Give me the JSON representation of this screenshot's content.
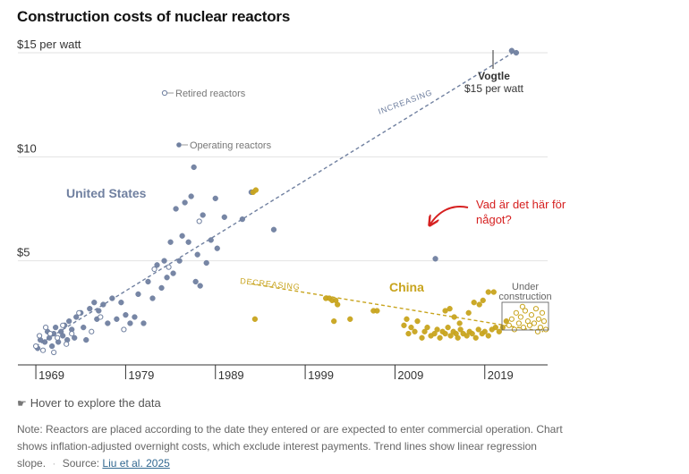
{
  "title": "Construction costs of nuclear reactors",
  "colors": {
    "us": "#7080a0",
    "china": "#c8a41e",
    "annotation_red": "#d62020",
    "grid": "#e2e2e2",
    "axis": "#333333"
  },
  "hover_hint": "Hover to explore the data",
  "note": {
    "text": "Note: Reactors are placed according to the date they entered or are expected to enter commercial operation. Chart shows inflation-adjusted overnight costs, which exclude interest payments. Trend lines show linear regression slope.",
    "source_label": "Source:",
    "source_link": "Liu et al. 2025"
  },
  "chart_data": {
    "type": "scatter",
    "title": "Construction costs of nuclear reactors",
    "xlim": [
      1967,
      2026
    ],
    "ylim": [
      0,
      15.3
    ],
    "x_ticks": [
      1969,
      1979,
      1989,
      1999,
      2009,
      2019
    ],
    "x_tick_labels": [
      "1969",
      "1979",
      "1989",
      "1999",
      "2009",
      "2019"
    ],
    "y_ticks": [
      5,
      10,
      15
    ],
    "y_tick_labels": [
      "$5",
      "$10",
      "$15 per watt"
    ],
    "grid": true,
    "labels": {
      "united_states": "United States",
      "china": "China",
      "retired_legend": "Retired reactors",
      "operating_legend": "Operating reactors",
      "vogtle_name": "Vogtle",
      "vogtle_value": "$15 per watt",
      "increasing": "INCREASING",
      "decreasing": "DECREASING",
      "under_construction": "Under construction",
      "handwritten_note": "Vad är det här för något?"
    },
    "trend_lines": {
      "us_increasing": {
        "x": [
          1969,
          2022.5
        ],
        "y": [
          0.9,
          15.1
        ]
      },
      "china_decreasing": {
        "x": [
          1993,
          2025.5
        ],
        "y": [
          3.9,
          1.6
        ]
      }
    },
    "series": [
      {
        "name": "United States",
        "status": "operating",
        "points": [
          [
            1969.2,
            0.8
          ],
          [
            1969.5,
            1.2
          ],
          [
            1970,
            1.1
          ],
          [
            1970.3,
            1.6
          ],
          [
            1970.5,
            1.3
          ],
          [
            1970.8,
            0.9
          ],
          [
            1971,
            1.5
          ],
          [
            1971.2,
            1.8
          ],
          [
            1971.5,
            1.1
          ],
          [
            1971.8,
            1.6
          ],
          [
            1972,
            1.4
          ],
          [
            1972.2,
            1.9
          ],
          [
            1972.5,
            1.2
          ],
          [
            1972.7,
            2.1
          ],
          [
            1973,
            1.7
          ],
          [
            1973.3,
            1.3
          ],
          [
            1973.5,
            2.3
          ],
          [
            1974,
            2.5
          ],
          [
            1974.3,
            1.8
          ],
          [
            1974.6,
            1.2
          ],
          [
            1975,
            2.7
          ],
          [
            1975.5,
            3.0
          ],
          [
            1975.8,
            2.2
          ],
          [
            1976,
            2.6
          ],
          [
            1976.5,
            2.9
          ],
          [
            1977,
            2.0
          ],
          [
            1977.5,
            3.2
          ],
          [
            1978,
            2.2
          ],
          [
            1978.5,
            3.0
          ],
          [
            1979,
            2.4
          ],
          [
            1979.5,
            2.0
          ],
          [
            1980,
            2.3
          ],
          [
            1980.4,
            3.4
          ],
          [
            1981,
            2.0
          ],
          [
            1981.5,
            4.0
          ],
          [
            1982,
            3.2
          ],
          [
            1982.5,
            4.8
          ],
          [
            1983,
            3.7
          ],
          [
            1983.3,
            5.0
          ],
          [
            1983.6,
            4.2
          ],
          [
            1984,
            5.9
          ],
          [
            1984.3,
            4.4
          ],
          [
            1984.6,
            7.5
          ],
          [
            1985,
            5.0
          ],
          [
            1985.3,
            6.2
          ],
          [
            1985.6,
            7.8
          ],
          [
            1986,
            5.9
          ],
          [
            1986.3,
            8.1
          ],
          [
            1986.6,
            9.5
          ],
          [
            1986.8,
            4.0
          ],
          [
            1987,
            5.3
          ],
          [
            1987.3,
            3.8
          ],
          [
            1987.6,
            7.2
          ],
          [
            1988,
            4.9
          ],
          [
            1988.5,
            6.0
          ],
          [
            1989,
            8.0
          ],
          [
            1989.2,
            5.6
          ],
          [
            1990,
            7.1
          ],
          [
            1992,
            7.0
          ],
          [
            1993,
            8.3
          ],
          [
            1995.5,
            6.5
          ],
          [
            2013.5,
            5.1
          ],
          [
            2022,
            15.1
          ],
          [
            2022.5,
            15.0
          ]
        ]
      },
      {
        "name": "United States",
        "status": "retired",
        "points": [
          [
            1969,
            0.9
          ],
          [
            1969.4,
            1.4
          ],
          [
            1969.8,
            0.7
          ],
          [
            1970.1,
            1.8
          ],
          [
            1970.6,
            1.5
          ],
          [
            1971,
            0.6
          ],
          [
            1971.4,
            1.3
          ],
          [
            1972,
            1.9
          ],
          [
            1972.4,
            1.0
          ],
          [
            1973,
            1.5
          ],
          [
            1973.8,
            2.5
          ],
          [
            1975.2,
            1.6
          ],
          [
            1976.2,
            2.3
          ],
          [
            1978.8,
            1.7
          ],
          [
            1982.2,
            4.6
          ],
          [
            1983.8,
            4.7
          ],
          [
            1987.2,
            6.9
          ]
        ]
      },
      {
        "name": "China",
        "status": "operating",
        "points": [
          [
            1993.2,
            8.3
          ],
          [
            1993.5,
            8.4
          ],
          [
            1993.4,
            2.2
          ],
          [
            2001.3,
            3.2
          ],
          [
            2001.7,
            3.2
          ],
          [
            2002,
            3.1
          ],
          [
            2002.4,
            3.1
          ],
          [
            2002.6,
            2.9
          ],
          [
            2002.2,
            2.1
          ],
          [
            2004,
            2.2
          ],
          [
            2006.6,
            2.6
          ],
          [
            2007,
            2.6
          ],
          [
            2010,
            1.9
          ],
          [
            2010.3,
            2.2
          ],
          [
            2010.5,
            1.5
          ],
          [
            2010.8,
            1.8
          ],
          [
            2011.2,
            1.6
          ],
          [
            2011.5,
            2.1
          ],
          [
            2012,
            1.3
          ],
          [
            2012.3,
            1.6
          ],
          [
            2012.6,
            1.8
          ],
          [
            2013,
            1.4
          ],
          [
            2013.4,
            1.5
          ],
          [
            2013.7,
            1.7
          ],
          [
            2014,
            1.3
          ],
          [
            2014.3,
            1.6
          ],
          [
            2014.6,
            1.5
          ],
          [
            2014.9,
            1.8
          ],
          [
            2015.2,
            1.4
          ],
          [
            2015.5,
            1.6
          ],
          [
            2015.8,
            1.5
          ],
          [
            2016,
            1.3
          ],
          [
            2016.3,
            1.7
          ],
          [
            2016.6,
            1.5
          ],
          [
            2017,
            1.4
          ],
          [
            2017.3,
            1.6
          ],
          [
            2017.6,
            1.5
          ],
          [
            2018,
            1.3
          ],
          [
            2018.3,
            1.7
          ],
          [
            2018.7,
            1.5
          ],
          [
            2019,
            1.6
          ],
          [
            2019.4,
            1.4
          ],
          [
            2019.8,
            1.7
          ],
          [
            2020.2,
            1.8
          ],
          [
            2020.6,
            1.6
          ],
          [
            2021,
            1.8
          ],
          [
            2021.4,
            2.1
          ],
          [
            2014.6,
            2.6
          ],
          [
            2015.1,
            2.7
          ],
          [
            2015.6,
            2.3
          ],
          [
            2016.2,
            2.0
          ],
          [
            2017.2,
            2.5
          ],
          [
            2017.8,
            3.0
          ],
          [
            2018.4,
            2.9
          ],
          [
            2018.8,
            3.1
          ],
          [
            2019.4,
            3.5
          ],
          [
            2020,
            3.5
          ]
        ]
      },
      {
        "name": "China",
        "status": "under_construction",
        "points": [
          [
            2021.7,
            1.9
          ],
          [
            2022,
            2.2
          ],
          [
            2022.3,
            1.7
          ],
          [
            2022.5,
            2.5
          ],
          [
            2022.8,
            2.0
          ],
          [
            2023,
            2.3
          ],
          [
            2023.3,
            1.8
          ],
          [
            2023.5,
            2.6
          ],
          [
            2023.8,
            2.1
          ],
          [
            2024,
            1.9
          ],
          [
            2024.2,
            2.4
          ],
          [
            2024.5,
            2.0
          ],
          [
            2024.7,
            2.7
          ],
          [
            2025,
            2.2
          ],
          [
            2025.2,
            1.8
          ],
          [
            2025.4,
            2.5
          ],
          [
            2025.6,
            2.1
          ],
          [
            2025.8,
            1.7
          ],
          [
            2024.9,
            1.6
          ],
          [
            2023.2,
            2.8
          ]
        ]
      }
    ]
  }
}
